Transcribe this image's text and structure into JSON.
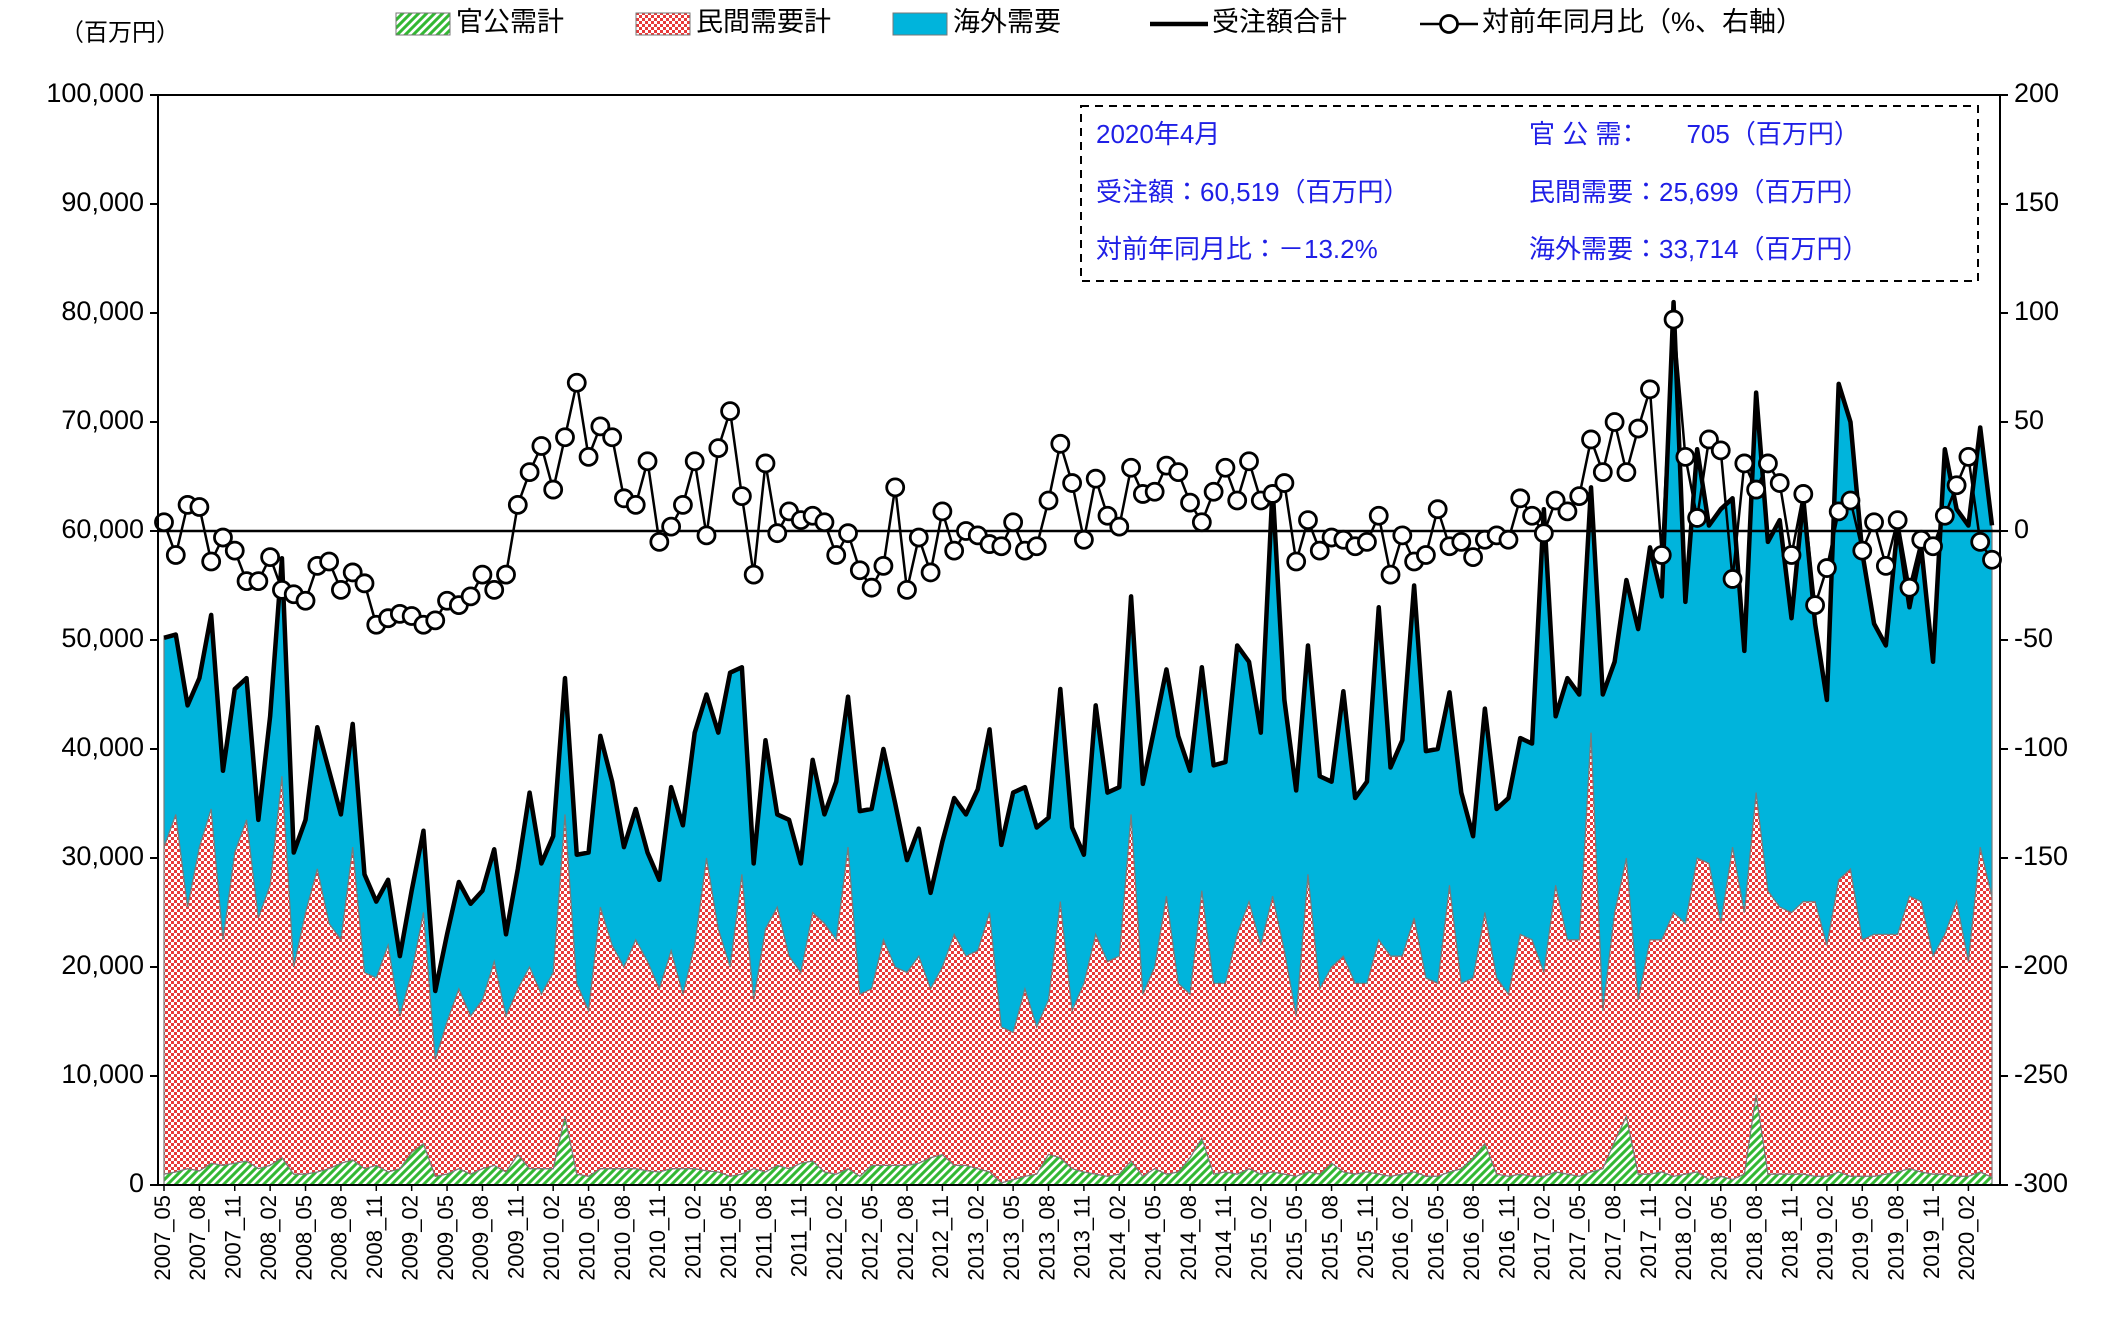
{
  "chart_data": {
    "type": "combo",
    "y_label": "（百万円）",
    "annotations": [
      "2020年4月",
      "受注額：60,519（百万円）",
      "対前年同月比：－13.2%",
      "官 公 需：　　705（百万円）",
      "民間需要：25,699（百万円）",
      "海外需要：33,714（百万円）"
    ],
    "categories": [
      "2007_05",
      null,
      null,
      "2007_08",
      null,
      null,
      "2007_11",
      null,
      null,
      "2008_02",
      null,
      null,
      "2008_05",
      null,
      null,
      "2008_08",
      null,
      null,
      "2008_11",
      null,
      null,
      "2009_02",
      null,
      null,
      "2009_05",
      null,
      null,
      "2009_08",
      null,
      null,
      "2009_11",
      null,
      null,
      "2010_02",
      null,
      null,
      "2010_05",
      null,
      null,
      "2010_08",
      null,
      null,
      "2010_11",
      null,
      null,
      "2011_02",
      null,
      null,
      "2011_05",
      null,
      null,
      "2011_08",
      null,
      null,
      "2011_11",
      null,
      null,
      "2012_02",
      null,
      null,
      "2012_05",
      null,
      null,
      "2012_08",
      null,
      null,
      "2012_11",
      null,
      null,
      "2013_02",
      null,
      null,
      "2013_05",
      null,
      null,
      "2013_08",
      null,
      null,
      "2013_11",
      null,
      null,
      "2014_02",
      null,
      null,
      "2014_05",
      null,
      null,
      "2014_08",
      null,
      null,
      "2014_11",
      null,
      null,
      "2015_02",
      null,
      null,
      "2015_05",
      null,
      null,
      "2015_08",
      null,
      null,
      "2015_11",
      null,
      null,
      "2016_02",
      null,
      null,
      "2016_05",
      null,
      null,
      "2016_08",
      null,
      null,
      "2016_11",
      null,
      null,
      "2017_02",
      null,
      null,
      "2017_05",
      null,
      null,
      "2017_08",
      null,
      null,
      "2017_11",
      null,
      null,
      "2018_02",
      null,
      null,
      "2018_05",
      null,
      null,
      "2018_08",
      null,
      null,
      "2018_11",
      null,
      null,
      "2019_02",
      null,
      null,
      "2019_05",
      null,
      null,
      "2019_08",
      null,
      null,
      "2019_11",
      null,
      null,
      "2020_02",
      null,
      null
    ],
    "series": [
      {
        "name": "官公需計",
        "mark": "area",
        "pattern": "hatch",
        "color": "#33b833",
        "values": [
          1000,
          1200,
          1500,
          1300,
          2000,
          1800,
          2000,
          2200,
          1500,
          1800,
          2500,
          1000,
          1000,
          1200,
          1500,
          2000,
          2300,
          1500,
          1800,
          1200,
          1500,
          3000,
          3800,
          800,
          1000,
          1500,
          1000,
          1500,
          1800,
          1200,
          2800,
          1500,
          1500,
          1500,
          6300,
          1000,
          800,
          1500,
          1500,
          1500,
          1500,
          1300,
          1200,
          1500,
          1500,
          1500,
          1300,
          1200,
          800,
          1000,
          1500,
          1200,
          1800,
          1500,
          2000,
          2200,
          1200,
          1000,
          1500,
          800,
          1800,
          1800,
          1800,
          1800,
          2000,
          2500,
          2800,
          1800,
          1800,
          1500,
          1200,
          200,
          500,
          800,
          1000,
          2800,
          2500,
          1500,
          1200,
          1000,
          800,
          1000,
          2200,
          800,
          1500,
          1000,
          1200,
          2500,
          4300,
          1000,
          1200,
          1000,
          1500,
          1000,
          1200,
          1000,
          800,
          1200,
          1000,
          2000,
          1200,
          1000,
          1200,
          1000,
          800,
          1000,
          1200,
          800,
          800,
          1200,
          1500,
          2500,
          3800,
          1000,
          800,
          1000,
          800,
          800,
          1200,
          1000,
          800,
          1200,
          1500,
          4000,
          6300,
          1000,
          1000,
          1200,
          800,
          1000,
          1200,
          500,
          800,
          500,
          1000,
          8300,
          1000,
          1000,
          1000,
          1000,
          800,
          800,
          1200,
          800,
          800,
          800,
          1000,
          1200,
          1500,
          1200,
          1000,
          1000,
          800,
          800,
          1200,
          705
        ]
      },
      {
        "name": "民間需要計",
        "mark": "area",
        "pattern": "check",
        "color": "#e83a3a",
        "values": [
          30000,
          32800,
          24000,
          29700,
          32500,
          20700,
          28500,
          31300,
          23000,
          25700,
          35000,
          19000,
          24000,
          27800,
          22500,
          20500,
          28700,
          18000,
          17200,
          20800,
          14000,
          16500,
          21200,
          10700,
          14000,
          16500,
          14500,
          15500,
          18700,
          14300,
          15200,
          18500,
          16000,
          18000,
          27700,
          17500,
          15200,
          24000,
          20500,
          18500,
          21000,
          19200,
          16800,
          20000,
          16000,
          20500,
          28700,
          22300,
          19200,
          27500,
          15500,
          22300,
          23700,
          19500,
          17500,
          22800,
          22800,
          21500,
          29500,
          16700,
          16200,
          20700,
          18200,
          17700,
          19000,
          15500,
          17200,
          21200,
          19200,
          20000,
          23800,
          14300,
          13500,
          17200,
          13500,
          14200,
          23500,
          14500,
          17300,
          22000,
          19700,
          20000,
          31800,
          16700,
          18500,
          25500,
          17300,
          15000,
          22700,
          17500,
          17300,
          22000,
          24500,
          21000,
          25300,
          20500,
          14700,
          27300,
          17000,
          18000,
          19800,
          17500,
          17300,
          21500,
          20200,
          20000,
          23300,
          18200,
          17700,
          26300,
          17000,
          16500,
          21200,
          18000,
          16700,
          22000,
          21700,
          18700,
          26300,
          21500,
          21700,
          40300,
          14500,
          21000,
          23700,
          16000,
          21500,
          21300,
          24200,
          23000,
          28800,
          29000,
          23200,
          30500,
          24000,
          27700,
          26000,
          24500,
          24000,
          25000,
          25200,
          21200,
          26800,
          28200,
          21700,
          22200,
          22000,
          21800,
          25000,
          24800,
          20000,
          22000,
          25200,
          19700,
          29800,
          25699
        ]
      },
      {
        "name": "海外需要",
        "mark": "area",
        "color": "#00b4dc",
        "values": [
          19200,
          16500,
          18500,
          15500,
          17800,
          15500,
          15000,
          13000,
          9000,
          15500,
          20000,
          10500,
          8500,
          13000,
          14000,
          11500,
          11300,
          9000,
          7000,
          6000,
          5500,
          7500,
          7500,
          6300,
          8000,
          9800,
          10300,
          10000,
          10300,
          7500,
          11000,
          16000,
          12000,
          12500,
          12500,
          11800,
          14500,
          15700,
          15000,
          11000,
          12000,
          10000,
          10000,
          15000,
          15500,
          19500,
          15000,
          18000,
          27000,
          19000,
          12500,
          17300,
          8500,
          12500,
          10000,
          14000,
          10000,
          14500,
          13800,
          16800,
          16500,
          17500,
          15000,
          10300,
          11700,
          8800,
          11500,
          12500,
          13000,
          14800,
          16800,
          16700,
          22000,
          18500,
          18300,
          16700,
          19500,
          16800,
          11800,
          21000,
          15500,
          15500,
          20000,
          19300,
          22000,
          20800,
          22700,
          20500,
          20500,
          20000,
          20300,
          26500,
          22000,
          19500,
          37500,
          23000,
          20700,
          21000,
          19500,
          17000,
          24300,
          17000,
          18500,
          30500,
          17300,
          19800,
          30500,
          20800,
          21500,
          17700,
          17500,
          13000,
          18700,
          15500,
          18000,
          18000,
          18000,
          42500,
          15500,
          24000,
          22500,
          22500,
          29000,
          23000,
          25500,
          34000,
          36000,
          31500,
          56000,
          29500,
          37500,
          31000,
          38000,
          32000,
          24000,
          36700,
          32000,
          35500,
          27000,
          37000,
          25500,
          22500,
          45500,
          41000,
          35500,
          28500,
          26500,
          37500,
          26500,
          32500,
          27000,
          44500,
          36000,
          40000,
          38500,
          33714
        ]
      },
      {
        "name": "受注額合計",
        "mark": "line",
        "color": "#000000",
        "values": [
          50200,
          50500,
          44000,
          46500,
          52300,
          38000,
          45500,
          46500,
          33500,
          43000,
          57500,
          30500,
          33500,
          42000,
          38000,
          34000,
          42300,
          28500,
          26000,
          28000,
          21000,
          27000,
          32500,
          17800,
          23000,
          27800,
          25800,
          27000,
          30800,
          23000,
          29000,
          36000,
          29500,
          32000,
          46500,
          30300,
          30500,
          41200,
          37000,
          31000,
          34500,
          30500,
          28000,
          36500,
          33000,
          41500,
          45000,
          41500,
          47000,
          47500,
          29500,
          40800,
          34000,
          33500,
          29500,
          39000,
          34000,
          37000,
          44800,
          34300,
          34500,
          40000,
          35000,
          29800,
          32700,
          26800,
          31500,
          35500,
          34000,
          36300,
          41800,
          31200,
          36000,
          36500,
          32800,
          33700,
          45500,
          32800,
          30300,
          44000,
          36000,
          36500,
          54000,
          36800,
          42000,
          47300,
          41200,
          38000,
          47500,
          38500,
          38800,
          49500,
          48000,
          41500,
          64000,
          44500,
          36200,
          49500,
          37500,
          37000,
          45300,
          35500,
          37000,
          53000,
          38300,
          40800,
          55000,
          39800,
          40000,
          45200,
          36000,
          32000,
          43700,
          34500,
          35500,
          41000,
          40500,
          62000,
          43000,
          46500,
          45000,
          64000,
          45000,
          48000,
          55500,
          51000,
          58500,
          54000,
          81000,
          53500,
          67500,
          60500,
          62000,
          63000,
          49000,
          72700,
          59000,
          61000,
          52000,
          63000,
          51500,
          44500,
          73500,
          70000,
          58000,
          51500,
          49500,
          60500,
          53000,
          58500,
          48000,
          67500,
          62000,
          60500,
          69500,
          60519
        ]
      },
      {
        "name": "対前年同月比（%、右軸）",
        "mark": "line",
        "marker": "circle",
        "axis": "y2",
        "color": "#000000",
        "values": [
          4,
          -11,
          12,
          11,
          -14,
          -3,
          -9,
          -23,
          -23,
          -12,
          -27,
          -29,
          -32,
          -16,
          -14,
          -27,
          -19,
          -24,
          -43,
          -40,
          -38,
          -39,
          -43,
          -41,
          -32,
          -34,
          -30,
          -20,
          -27,
          -20,
          12,
          27,
          39,
          19,
          43,
          68,
          34,
          48,
          43,
          15,
          12,
          32,
          -5,
          2,
          12,
          32,
          -2,
          38,
          55,
          16,
          -20,
          31,
          -1,
          9,
          5,
          7,
          4,
          -11,
          -1,
          -18,
          -26,
          -16,
          20,
          -27,
          -3,
          -19,
          9,
          -9,
          0,
          -2,
          -6,
          -7,
          4,
          -9,
          -7,
          14,
          40,
          22,
          -4,
          24,
          7,
          2,
          29,
          17,
          18,
          30,
          27,
          13,
          4,
          18,
          29,
          14,
          32,
          14,
          17,
          22,
          -14,
          5,
          -9,
          -3,
          -4,
          -7,
          -5,
          7,
          -20,
          -2,
          -14,
          -11,
          10,
          -7,
          -5,
          -12,
          -4,
          -2,
          -4,
          15,
          7,
          -1,
          14,
          9,
          16,
          42,
          27,
          50,
          27,
          47,
          65,
          -11,
          97,
          34,
          6,
          42,
          37,
          -22,
          31,
          19,
          31,
          22,
          -11,
          17,
          -34,
          -17,
          9,
          14,
          -9,
          4,
          -16,
          5,
          -26,
          -4,
          -7,
          7,
          21,
          34,
          -5,
          -13.2
        ]
      }
    ],
    "ylim": [
      0,
      100000
    ],
    "yticks": [
      0,
      {
        "value": 10000,
        "label": "10,000"
      },
      {
        "value": 20000,
        "label": "20,000"
      },
      {
        "value": 30000,
        "label": "30,000"
      },
      {
        "value": 40000,
        "label": "40,000"
      },
      {
        "value": 50000,
        "label": "50,000"
      },
      {
        "value": 60000,
        "label": "60,000"
      },
      {
        "value": 70000,
        "label": "70,000"
      },
      {
        "value": 80000,
        "label": "80,000"
      },
      {
        "value": 90000,
        "label": "90,000"
      },
      {
        "value": 100000,
        "label": "100,000"
      }
    ],
    "y2lim": [
      -300,
      200
    ],
    "y2ticks": [
      -300,
      -250,
      -200,
      -150,
      -100,
      -50,
      0,
      50,
      100,
      150,
      200
    ],
    "reference_line": {
      "axis": "y2",
      "value": 0
    },
    "grid": false,
    "legend": "top"
  }
}
